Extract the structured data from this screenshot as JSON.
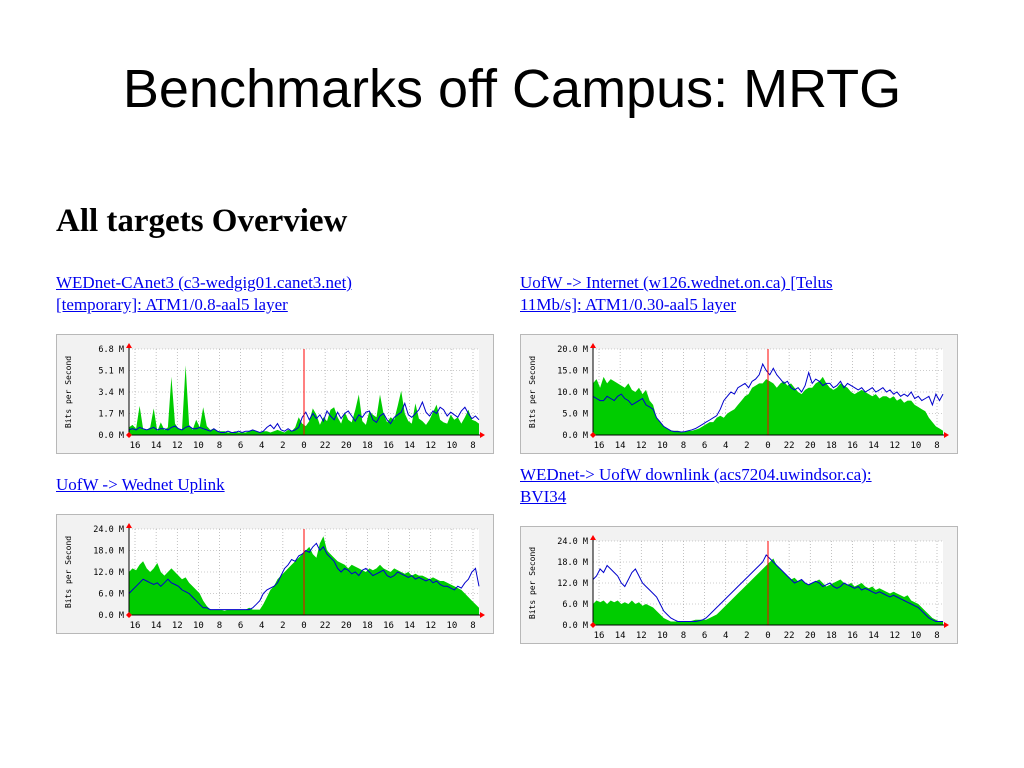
{
  "slide": {
    "title": "Benchmarks off Campus: MRTG"
  },
  "overview": {
    "heading": "All targets Overview"
  },
  "targets": [
    {
      "link_line1": "WEDnet-CAnet3 (c3-wedgig01.canet3.net)",
      "link_line2": "[temporary]: ATM1/0.8-aal5 layer",
      "chart_data": {
        "type": "area",
        "ylabel": "Bits per Second",
        "y_ticks": [
          "0.0 M",
          "1.7 M",
          "3.4 M",
          "5.1 M",
          "6.8 M"
        ],
        "ylim": [
          0,
          6.8
        ],
        "x_ticks": [
          "16",
          "14",
          "12",
          "10",
          "8",
          "6",
          "4",
          "2",
          "0",
          "22",
          "20",
          "18",
          "16",
          "14",
          "12",
          "10",
          "8"
        ],
        "now_marker_tick": "0",
        "grid": true,
        "series": [
          {
            "color": "#00cc00",
            "values": [
              0.6,
              0.8,
              0.5,
              2.3,
              0.5,
              0.4,
              0.6,
              2.1,
              0.3,
              1.0,
              0.4,
              0.6,
              4.6,
              0.9,
              0.5,
              0.4,
              5.5,
              0.8,
              0.4,
              1.2,
              0.6,
              2.2,
              0.7,
              0.4,
              0.5,
              0.3,
              0.3,
              0.3,
              0.2,
              0.2,
              0.3,
              0.2,
              0.2,
              0.2,
              0.3,
              0.4,
              0.3,
              0.2,
              0.3,
              0.3,
              0.2,
              0.3,
              0.4,
              0.3,
              0.2,
              0.4,
              0.3,
              0.6,
              1.4,
              0.9,
              0.7,
              1.1,
              2.1,
              1.6,
              0.8,
              1.4,
              1.1,
              2.0,
              2.2,
              1.4,
              0.9,
              1.8,
              1.2,
              1.0,
              2.0,
              3.2,
              1.1,
              0.8,
              1.9,
              1.6,
              1.4,
              3.2,
              1.7,
              1.0,
              1.4,
              1.2,
              2.3,
              3.5,
              1.7,
              1.1,
              0.9,
              2.5,
              1.3,
              1.1,
              0.8,
              1.2,
              1.8,
              2.4,
              1.2,
              1.0,
              0.9,
              1.6,
              1.2,
              1.4,
              0.9,
              1.4,
              2.0,
              1.2,
              1.1,
              0.9
            ]
          },
          {
            "color": "#0000cc",
            "values": [
              0.4,
              0.5,
              0.4,
              0.6,
              0.5,
              0.4,
              0.5,
              0.6,
              0.4,
              0.5,
              0.5,
              0.4,
              0.6,
              0.7,
              0.5,
              0.4,
              0.6,
              0.7,
              0.5,
              0.5,
              0.6,
              0.5,
              0.4,
              0.3,
              0.5,
              0.3,
              0.2,
              0.2,
              0.3,
              0.2,
              0.2,
              0.3,
              0.2,
              0.3,
              0.3,
              0.4,
              0.3,
              0.2,
              0.3,
              0.6,
              0.8,
              0.5,
              0.9,
              0.4,
              0.3,
              0.5,
              0.3,
              0.4,
              0.6,
              1.4,
              1.8,
              1.2,
              1.7,
              1.3,
              1.6,
              1.1,
              1.9,
              1.5,
              1.2,
              1.8,
              1.3,
              1.7,
              1.9,
              1.5,
              1.1,
              1.6,
              1.4,
              1.8,
              1.9,
              1.2,
              1.0,
              1.5,
              1.7,
              1.2,
              0.9,
              1.4,
              1.6,
              1.8,
              2.5,
              1.6,
              1.4,
              1.7,
              2.0,
              2.6,
              1.8,
              1.5,
              1.9,
              1.7,
              2.2,
              2.0,
              1.5,
              1.8,
              1.6,
              1.4,
              1.9,
              2.2,
              1.7,
              1.3,
              1.5,
              1.2
            ]
          }
        ]
      }
    },
    {
      "link_line1": "UofW -> Internet (w126.wednet.on.ca) [Telus",
      "link_line2": "11Mb/s]: ATM1/0.30-aal5 layer",
      "chart_data": {
        "type": "area",
        "ylabel": "Bits per Second",
        "y_ticks": [
          "0.0 M",
          "5.0 M",
          "10.0 M",
          "15.0 M",
          "20.0 M"
        ],
        "ylim": [
          0,
          20
        ],
        "x_ticks": [
          "16",
          "14",
          "12",
          "10",
          "8",
          "6",
          "4",
          "2",
          "0",
          "22",
          "20",
          "18",
          "16",
          "14",
          "12",
          "10",
          "8"
        ],
        "now_marker_tick": "0",
        "grid": true,
        "series": [
          {
            "color": "#00cc00",
            "values": [
              12,
              13,
              11,
              13.5,
              12,
              13,
              12.5,
              12,
              11.5,
              11,
              12,
              10.5,
              10,
              11,
              9.5,
              10.5,
              8,
              7,
              4,
              3,
              2,
              1.5,
              1,
              1,
              1,
              0.8,
              0.8,
              1,
              1,
              1.2,
              1.5,
              2,
              2.5,
              3,
              3,
              4,
              4.5,
              4,
              5,
              5.5,
              6,
              7,
              8,
              9,
              9.5,
              11,
              11.5,
              12,
              12,
              13,
              12.5,
              12,
              11,
              12,
              12.5,
              11.5,
              12,
              11,
              10,
              9.5,
              10.5,
              11,
              11,
              12,
              12.5,
              13.5,
              12,
              11,
              10.5,
              11,
              12,
              11.5,
              11,
              10,
              9.5,
              10,
              10.5,
              10,
              9.5,
              9,
              9.5,
              8.5,
              9,
              9,
              8.5,
              9,
              8,
              8.5,
              7.5,
              8,
              8,
              7,
              6.5,
              6,
              5.5,
              4,
              3,
              2,
              1.5,
              1
            ]
          },
          {
            "color": "#0000cc",
            "values": [
              9,
              8.5,
              8,
              8,
              9,
              8.5,
              8,
              9,
              9.5,
              8.5,
              8,
              7,
              7.5,
              8,
              8.5,
              7,
              6.5,
              6,
              4,
              3,
              2,
              1.5,
              1,
              0.8,
              0.8,
              0.7,
              0.8,
              1,
              1.2,
              1.5,
              2,
              2.5,
              3,
              3.5,
              4,
              4.5,
              6,
              8,
              9,
              10,
              9.5,
              11,
              11.5,
              12,
              11,
              12.5,
              13,
              14,
              16.5,
              15,
              14,
              15.5,
              14,
              13,
              12,
              12.5,
              11,
              10.5,
              11,
              10,
              11.5,
              14.5,
              12,
              13,
              12.5,
              11.5,
              12,
              12,
              11,
              11.5,
              12.5,
              11,
              12,
              11.5,
              11,
              10.5,
              11,
              10,
              10.5,
              11,
              10,
              10.5,
              11,
              10,
              10.5,
              9.5,
              10,
              9,
              9.5,
              9,
              10,
              8.5,
              9,
              8,
              8.5,
              9,
              7,
              9.5,
              8,
              9.5
            ]
          }
        ]
      }
    },
    {
      "link_line1": "UofW -> Wednet Uplink",
      "link_line2": "",
      "chart_data": {
        "type": "area",
        "ylabel": "Bits per Second",
        "y_ticks": [
          "0.0 M",
          "6.0 M",
          "12.0 M",
          "18.0 M",
          "24.0 M"
        ],
        "ylim": [
          0,
          24
        ],
        "x_ticks": [
          "16",
          "14",
          "12",
          "10",
          "8",
          "6",
          "4",
          "2",
          "0",
          "22",
          "20",
          "18",
          "16",
          "14",
          "12",
          "10",
          "8"
        ],
        "now_marker_tick": "0",
        "grid": true,
        "series": [
          {
            "color": "#00cc00",
            "values": [
              12,
              13,
              12.5,
              14,
              15,
              13,
              12,
              13,
              14.5,
              12,
              11,
              12,
              13,
              12,
              11,
              10,
              10.5,
              9,
              8,
              7,
              6,
              4,
              2.5,
              1.5,
              1.5,
              1.5,
              1.5,
              1.2,
              1.5,
              1.5,
              1.5,
              1.5,
              1.5,
              1.5,
              2,
              1.5,
              1.5,
              1.5,
              3,
              5,
              7,
              8,
              10,
              11,
              12,
              13,
              14,
              15,
              16,
              17,
              18,
              19,
              17,
              16,
              20,
              22,
              18,
              17,
              16,
              15,
              14.5,
              14,
              13,
              14,
              13.5,
              13,
              12.5,
              12,
              13,
              12.5,
              13,
              14,
              13,
              12.5,
              12,
              13,
              12.5,
              12,
              11.5,
              12,
              11,
              11.5,
              11,
              11,
              10.5,
              10,
              10.5,
              10,
              9.5,
              9.5,
              9,
              8.5,
              8,
              7.5,
              7,
              6,
              5,
              4,
              3,
              2
            ]
          },
          {
            "color": "#0000cc",
            "values": [
              6,
              7,
              8,
              9,
              10,
              9.5,
              9,
              8.5,
              9,
              8,
              9,
              10,
              9,
              8.5,
              8,
              7,
              6.5,
              6,
              5,
              4,
              3,
              2,
              2,
              1.5,
              1.5,
              1.5,
              1.5,
              1.5,
              1.5,
              1.5,
              1.5,
              1.5,
              1.5,
              1.5,
              1.5,
              2,
              3,
              4,
              6,
              7,
              7.5,
              8,
              9,
              11,
              13,
              14,
              15.5,
              15,
              16.5,
              17,
              18,
              17.5,
              19,
              20,
              18,
              19,
              17,
              16,
              15,
              13,
              12,
              13,
              12.5,
              11.5,
              12,
              11,
              12.5,
              13,
              12,
              11,
              11.5,
              12,
              12.5,
              11,
              10.5,
              11,
              12,
              11.5,
              11,
              10.5,
              11,
              10,
              10.5,
              10,
              9.5,
              10,
              9,
              9.5,
              8.5,
              8,
              8,
              7.5,
              7,
              8,
              7.5,
              9,
              10,
              12,
              13,
              8
            ]
          }
        ]
      }
    },
    {
      "link_line1": "WEDnet-> UofW downlink (acs7204.uwindsor.ca):",
      "link_line2": "BVI34",
      "chart_data": {
        "type": "area",
        "ylabel": "Bits per Second",
        "y_ticks": [
          "0.0 M",
          "6.0 M",
          "12.0 M",
          "18.0 M",
          "24.0 M"
        ],
        "ylim": [
          0,
          24
        ],
        "x_ticks": [
          "16",
          "14",
          "12",
          "10",
          "8",
          "6",
          "4",
          "2",
          "0",
          "22",
          "20",
          "18",
          "16",
          "14",
          "12",
          "10",
          "8"
        ],
        "now_marker_tick": "0",
        "grid": true,
        "series": [
          {
            "color": "#00cc00",
            "values": [
              6,
              7,
              6.5,
              7,
              6,
              7,
              6.5,
              7,
              6,
              6.5,
              6,
              7,
              6,
              6.5,
              5.5,
              6,
              5.5,
              5,
              4,
              3,
              2,
              1.5,
              1,
              1,
              1,
              1,
              1,
              1,
              1.2,
              1.5,
              1.5,
              1.5,
              1.5,
              2,
              2.5,
              3,
              4,
              5,
              6,
              7,
              8,
              9,
              10,
              11,
              12,
              13,
              14,
              15,
              16,
              17,
              18,
              19,
              17,
              16,
              15,
              14,
              13,
              13.5,
              12.5,
              13,
              12,
              11.5,
              12,
              12.5,
              13,
              12,
              11,
              11.5,
              12,
              12.5,
              13,
              12,
              11.5,
              12,
              11,
              11.5,
              12,
              11,
              10.5,
              11,
              10,
              10.5,
              10,
              9.5,
              9,
              9.5,
              9,
              8.5,
              8,
              8.5,
              7,
              6.5,
              6,
              5,
              4,
              3,
              2,
              1.5,
              1,
              1
            ]
          },
          {
            "color": "#0000cc",
            "values": [
              13,
              14,
              16,
              15,
              17,
              16,
              15,
              14,
              12,
              11,
              13,
              15,
              16,
              14,
              12,
              11,
              10,
              9,
              8,
              6,
              4,
              3,
              2,
              1.5,
              1,
              1,
              1,
              1,
              1,
              1,
              1.2,
              1.5,
              2,
              3,
              4,
              5,
              6,
              7,
              8,
              9,
              10,
              11,
              12,
              13,
              14,
              15,
              16,
              17,
              18,
              20,
              19,
              18,
              17,
              16,
              15,
              14,
              13,
              12,
              12.5,
              13,
              12,
              11.5,
              12,
              12.5,
              12,
              11,
              11.5,
              12,
              11,
              10.5,
              11,
              12,
              11.5,
              11,
              10.5,
              11,
              10,
              10.5,
              10,
              9.5,
              9,
              9.5,
              9,
              8.5,
              8,
              8.5,
              8,
              7.5,
              7,
              6.5,
              6,
              5.5,
              5,
              4,
              3,
              2,
              1.5,
              1,
              1,
              1
            ]
          }
        ]
      }
    }
  ]
}
